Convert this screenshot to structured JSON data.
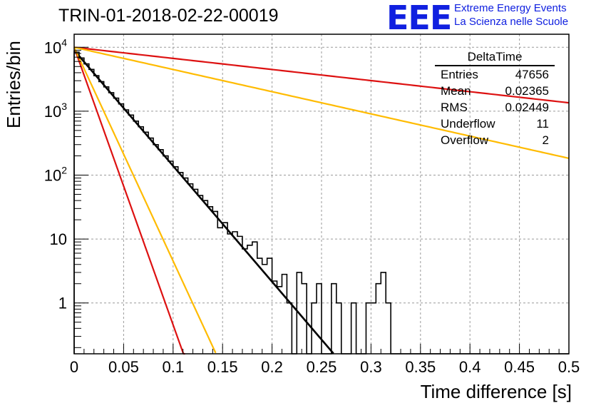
{
  "chart_data": {
    "type": "histogram",
    "title": "TRIN-01-2018-02-22-00019",
    "xlabel": "Time difference [s]",
    "ylabel": "Entries/bin",
    "xlim": [
      0,
      0.5
    ],
    "ylim": [
      0.16,
      16000
    ],
    "yscale": "log",
    "grid": true,
    "xticks": [
      {
        "v": 0,
        "label": "0"
      },
      {
        "v": 0.05,
        "label": "0.05"
      },
      {
        "v": 0.1,
        "label": "0.1"
      },
      {
        "v": 0.15,
        "label": "0.15"
      },
      {
        "v": 0.2,
        "label": "0.2"
      },
      {
        "v": 0.25,
        "label": "0.25"
      },
      {
        "v": 0.3,
        "label": "0.3"
      },
      {
        "v": 0.35,
        "label": "0.35"
      },
      {
        "v": 0.4,
        "label": "0.4"
      },
      {
        "v": 0.45,
        "label": "0.45"
      },
      {
        "v": 0.5,
        "label": "0.5"
      }
    ],
    "yticks": [
      {
        "v": 1,
        "label": "1"
      },
      {
        "v": 10,
        "label": "10"
      },
      {
        "v": 100,
        "label": "10",
        "exp": "2"
      },
      {
        "v": 1000,
        "label": "10",
        "exp": "3"
      },
      {
        "v": 10000,
        "label": "10",
        "exp": "4"
      }
    ],
    "bin_width": 0.005,
    "histogram": [
      8400,
      6800,
      5500,
      4500,
      3600,
      2900,
      2400,
      1950,
      1600,
      1300,
      1050,
      870,
      700,
      570,
      470,
      380,
      300,
      250,
      200,
      165,
      135,
      110,
      90,
      73,
      60,
      48,
      40,
      32,
      27,
      15,
      18,
      12,
      13,
      11,
      7,
      8,
      9,
      5,
      4,
      5,
      2.2,
      1.8,
      2.8,
      1,
      0,
      3,
      2,
      0,
      1,
      2,
      0,
      0,
      2,
      1,
      0,
      0,
      1,
      0,
      0,
      1,
      1,
      2,
      3,
      1,
      0,
      0,
      0,
      0,
      0,
      0,
      0,
      0,
      0,
      0,
      0,
      0,
      0,
      0,
      0,
      0,
      0,
      0,
      0,
      0,
      0,
      0,
      0,
      0,
      0,
      0,
      0,
      0,
      0,
      0,
      0,
      0,
      0,
      0,
      0,
      0
    ],
    "series": [
      {
        "kind": "fit",
        "color": "#000000",
        "y0": 9000,
        "slope": 41.7,
        "x_end": 0.262
      },
      {
        "kind": "exp",
        "color": "#dd1111",
        "y0": 10000,
        "slope": 4.0,
        "x_end": 0.5
      },
      {
        "kind": "exp",
        "color": "#ffbb00",
        "y0": 10000,
        "slope": 8.0,
        "x_end": 0.5
      },
      {
        "kind": "exp",
        "color": "#dd1111",
        "y0": 10000,
        "slope": 100.0,
        "x_end": 0.112
      },
      {
        "kind": "exp",
        "color": "#ffbb00",
        "y0": 10000,
        "slope": 77.0,
        "x_end": 0.143
      }
    ]
  },
  "logo": {
    "mark": "EEE",
    "line1": "Extreme Energy Events",
    "line2": "La Scienza nelle Scuole",
    "color": "#1020e0"
  },
  "stats": {
    "title": "DeltaTime",
    "rows": [
      {
        "label": "Entries",
        "value": "47656"
      },
      {
        "label": "Mean",
        "value": "0.02365"
      },
      {
        "label": "RMS",
        "value": "0.02449"
      },
      {
        "label": "Underflow",
        "value": "11"
      },
      {
        "label": "Overflow",
        "value": "2"
      }
    ]
  }
}
